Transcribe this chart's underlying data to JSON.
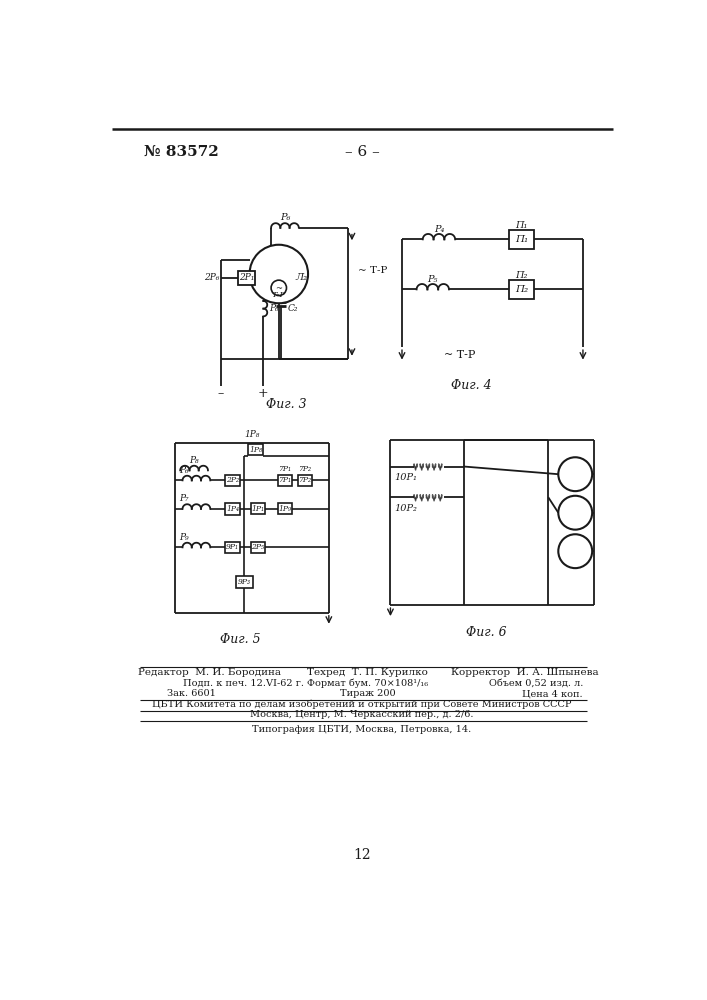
{
  "page_number": "№ 83572",
  "page_header_center": "– 6 –",
  "fig3_label": "Φиг. 3",
  "fig4_label": "Φиг. 4",
  "fig5_label": "Φиг. 5",
  "fig6_label": "Φиг. 6",
  "footer_page_num": "12",
  "editor_line1_l": "Редактор  М. И. Бородина",
  "editor_line1_c": "Техред  Т. П. Курилко",
  "editor_line1_r": "Корректор  И. А. Шпынева",
  "line2a": "Подп. к печ. 12.VI-62 г.",
  "line2b": "Формат бум. 70×108¹/₁₆",
  "line2c": "Объем 0,52 изд. л.",
  "line3a": "Зак. 6601",
  "line3b": "Тираж 200",
  "line3c": "Цена 4 коп.",
  "line4": "ЦБТИ Комитета по делам изобретений и открытий при Совете Министров СССР",
  "line5": "Москва, Центр, М. Черкасский пер., д. 2/6.",
  "line6": "Типография ЦБТИ, Москва, Петровка, 14.",
  "bg_color": "#ffffff",
  "line_color": "#1a1a1a",
  "fig_area_bg": "#ffffff"
}
